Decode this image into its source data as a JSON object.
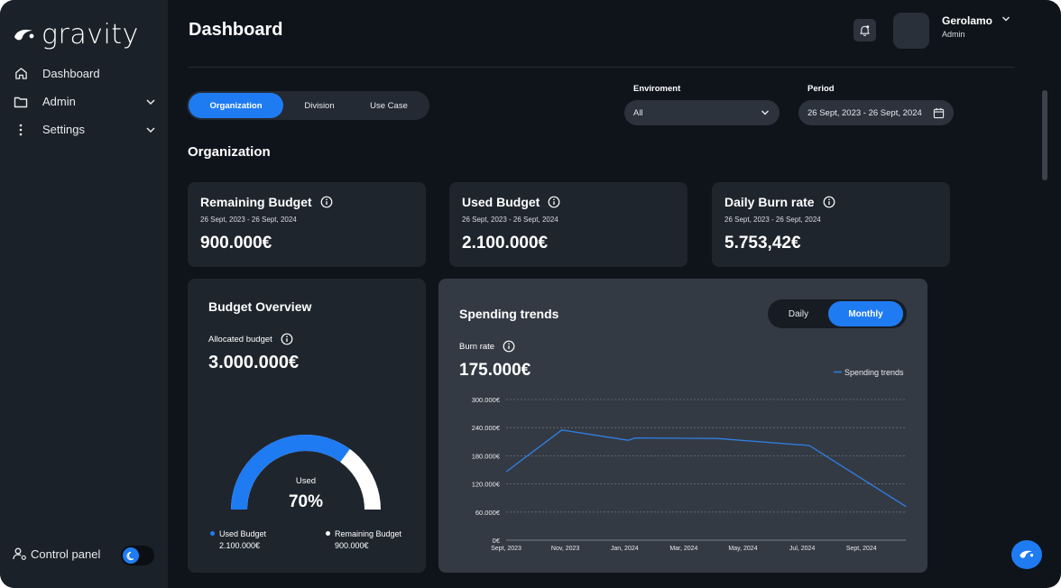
{
  "app": {
    "logo_text": "gravity"
  },
  "sidebar": {
    "items": [
      {
        "label": "Dashboard",
        "icon": "home-icon"
      },
      {
        "label": "Admin",
        "icon": "folder-icon"
      },
      {
        "label": "Settings",
        "icon": "more-vertical-icon"
      }
    ],
    "control_panel_label": "Control panel"
  },
  "header": {
    "title": "Dashboard",
    "user": {
      "name": "Gerolamo",
      "role": "Admin"
    }
  },
  "scope_tabs": [
    {
      "label": "Organization",
      "active": true
    },
    {
      "label": "Division",
      "active": false
    },
    {
      "label": "Use Case",
      "active": false
    }
  ],
  "filters": {
    "environment": {
      "label": "Enviroment",
      "value": "All"
    },
    "period": {
      "label": "Period",
      "value": "26 Sept, 2023 - 26 Sept, 2024"
    }
  },
  "section_title": "Organization",
  "stats": [
    {
      "title": "Remaining Budget",
      "range": "26 Sept, 2023 - 26 Sept, 2024",
      "value": "900.000€"
    },
    {
      "title": "Used Budget",
      "range": "26 Sept, 2023 - 26 Sept, 2024",
      "value": "2.100.000€"
    },
    {
      "title": "Daily Burn rate",
      "range": "26 Sept, 2023 - 26 Sept, 2024",
      "value": "5.753,42€"
    }
  ],
  "budget_overview": {
    "title": "Budget Overview",
    "allocated_label": "Allocated budget",
    "allocated_value": "3.000.000€",
    "gauge_label": "Used",
    "gauge_value": "70%",
    "used_fraction": 0.7,
    "legend": [
      {
        "label": "Used Budget",
        "value": "2.100.000€",
        "color": "#1f7bf2"
      },
      {
        "label": "Remaining Budget",
        "value": "900.000€",
        "color": "#ffffff"
      }
    ]
  },
  "spending_trends": {
    "title": "Spending trends",
    "tabs": [
      {
        "label": "Daily",
        "active": false
      },
      {
        "label": "Monthly",
        "active": true
      }
    ],
    "burn_label": "Burn rate",
    "burn_value": "175.000€"
  },
  "chart_data": {
    "type": "line",
    "x": [
      "Sept, 2023",
      "Nov, 2023",
      "Jan, 2024",
      "Mar, 2024",
      "May, 2024",
      "Jul, 2024",
      "Sept, 2024"
    ],
    "series": [
      {
        "name": "Spending trends",
        "color": "#2f7fe6",
        "points": [
          [
            0,
            146000
          ],
          [
            0.94,
            235000
          ],
          [
            2.06,
            213000
          ],
          [
            2.18,
            218000
          ],
          [
            3.56,
            217000
          ],
          [
            5.12,
            202000
          ],
          [
            6.75,
            72000
          ]
        ]
      }
    ],
    "yticks": [
      "300.000€",
      "240.000€",
      "180.000€",
      "120.000€",
      "60.000€",
      "0€"
    ],
    "ylim": [
      0,
      300000
    ],
    "xlim": [
      0,
      6.75
    ],
    "legend_position": "top-right",
    "grid": true
  },
  "colors": {
    "accent": "#1f7bf2",
    "card": "#1f252d",
    "panel": "#343a43"
  }
}
